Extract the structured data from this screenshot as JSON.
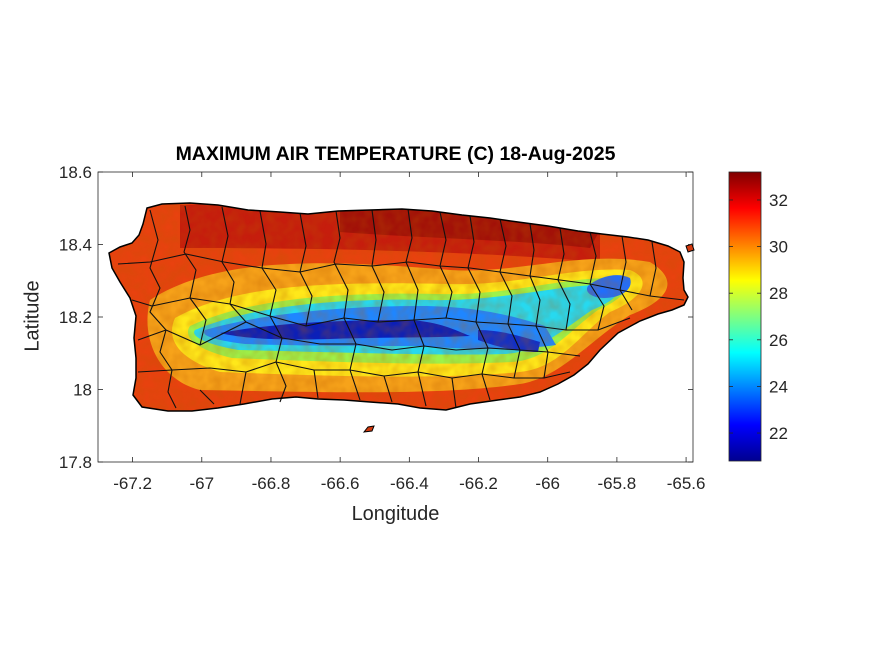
{
  "map": {
    "title": "MAXIMUM AIR TEMPERATURE (C) 18-Aug-2025",
    "x_axis_label": "Longitude",
    "y_axis_label": "Latitude",
    "region": "Puerto Rico",
    "x_range": [
      -67.3,
      -65.58
    ],
    "y_range": [
      17.8,
      18.6
    ],
    "x_ticks": [
      {
        "value": -67.2,
        "label": "-67.2"
      },
      {
        "value": -67.0,
        "label": "-67"
      },
      {
        "value": -66.8,
        "label": "-66.8"
      },
      {
        "value": -66.6,
        "label": "-66.6"
      },
      {
        "value": -66.4,
        "label": "-66.4"
      },
      {
        "value": -66.2,
        "label": "-66.2"
      },
      {
        "value": -66.0,
        "label": "-66"
      },
      {
        "value": -65.8,
        "label": "-65.8"
      },
      {
        "value": -65.6,
        "label": "-65.6"
      }
    ],
    "y_ticks": [
      {
        "value": 17.8,
        "label": "17.8"
      },
      {
        "value": 18.0,
        "label": "18"
      },
      {
        "value": 18.2,
        "label": "18.2"
      },
      {
        "value": 18.4,
        "label": "18.4"
      },
      {
        "value": 18.6,
        "label": "18.6"
      }
    ],
    "colorbar": {
      "colormap": "jet",
      "range": [
        20.8,
        33.2
      ],
      "ticks": [
        {
          "value": 22,
          "label": "22"
        },
        {
          "value": 24,
          "label": "24"
        },
        {
          "value": 26,
          "label": "26"
        },
        {
          "value": 28,
          "label": "28"
        },
        {
          "value": 30,
          "label": "30"
        },
        {
          "value": 32,
          "label": "32"
        }
      ]
    },
    "colors": {
      "axes_text": "#262626",
      "title_text": "#000000",
      "border": "#000000",
      "coast_hot": "#e8420f",
      "north_coast_hottest": "#a8100a",
      "mountains_coolest": "#0b1fb8"
    }
  }
}
